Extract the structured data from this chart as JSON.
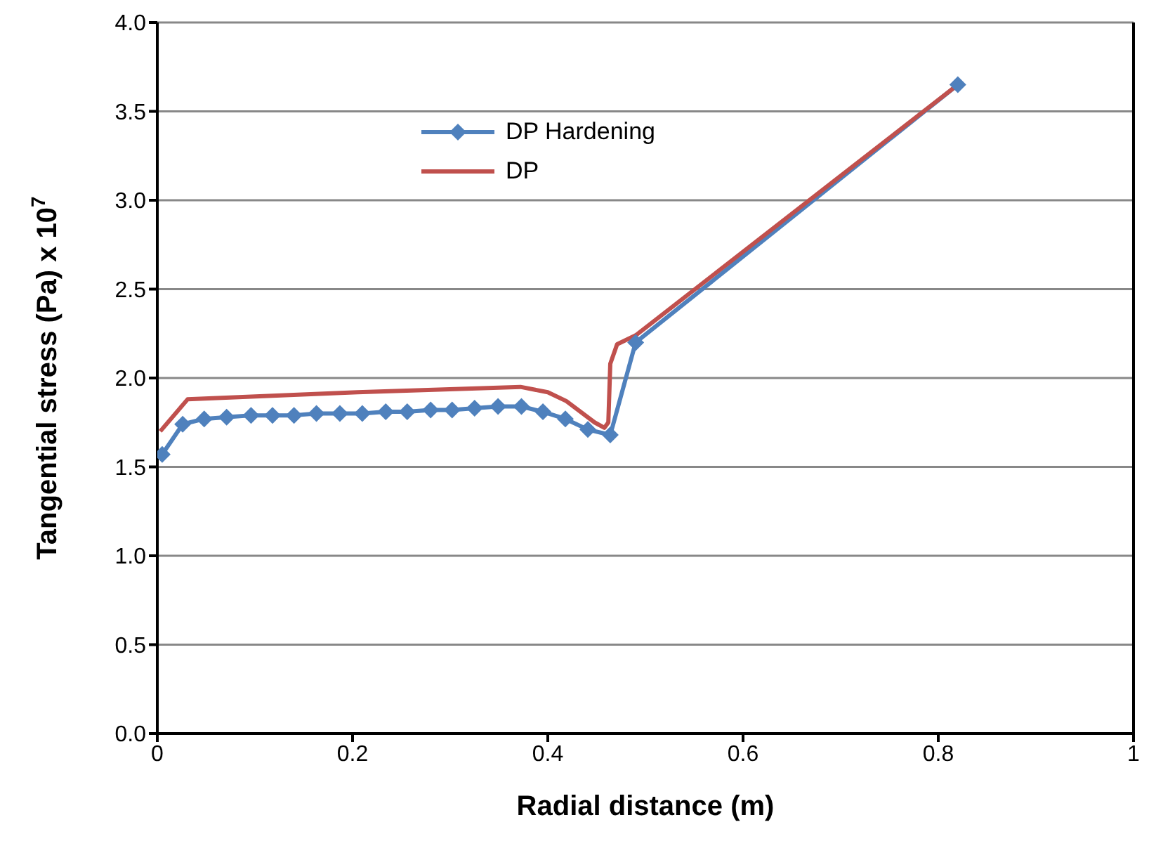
{
  "chart_data": {
    "type": "line",
    "xlabel": "Radial distance (m)",
    "ylabel": "Tangential stress (Pa)  x 10$^{7}$",
    "xlim": [
      0,
      1
    ],
    "xticks": [
      0,
      0.2,
      0.4,
      0.6,
      0.8,
      1
    ],
    "ylim": [
      0,
      4
    ],
    "yticks": [
      {
        "value": 0,
        "label": "0.0"
      },
      0.5,
      {
        "value": 1,
        "label": "1.0"
      },
      1.5,
      {
        "value": 2,
        "label": "2.0"
      },
      2.5,
      {
        "value": 3,
        "label": "3.0"
      },
      3.5,
      {
        "value": 4,
        "label": "4.0"
      }
    ],
    "grid": "y",
    "legend": "top left",
    "series": [
      {
        "name": "DP Hardening",
        "color": "#4f81bd",
        "marker": "diamond",
        "x": [
          0.005,
          0.026,
          0.048,
          0.071,
          0.096,
          0.118,
          0.14,
          0.163,
          0.187,
          0.21,
          0.234,
          0.256,
          0.28,
          0.302,
          0.325,
          0.349,
          0.373,
          0.395,
          0.418,
          0.441,
          0.464,
          0.49,
          0.82
        ],
        "values": [
          1.57,
          1.74,
          1.77,
          1.78,
          1.79,
          1.79,
          1.79,
          1.8,
          1.8,
          1.8,
          1.81,
          1.81,
          1.82,
          1.82,
          1.83,
          1.84,
          1.84,
          1.81,
          1.77,
          1.71,
          1.68,
          2.2,
          3.65
        ]
      },
      {
        "name": "DP",
        "color": "#c0504d",
        "marker": "none",
        "x": [
          0.003,
          0.031,
          0.205,
          0.372,
          0.4,
          0.419,
          0.448,
          0.458,
          0.462,
          0.464,
          0.471,
          0.49,
          0.82
        ],
        "values": [
          1.7,
          1.88,
          1.92,
          1.95,
          1.92,
          1.87,
          1.75,
          1.72,
          1.75,
          2.08,
          2.19,
          2.24,
          3.65
        ]
      }
    ]
  }
}
